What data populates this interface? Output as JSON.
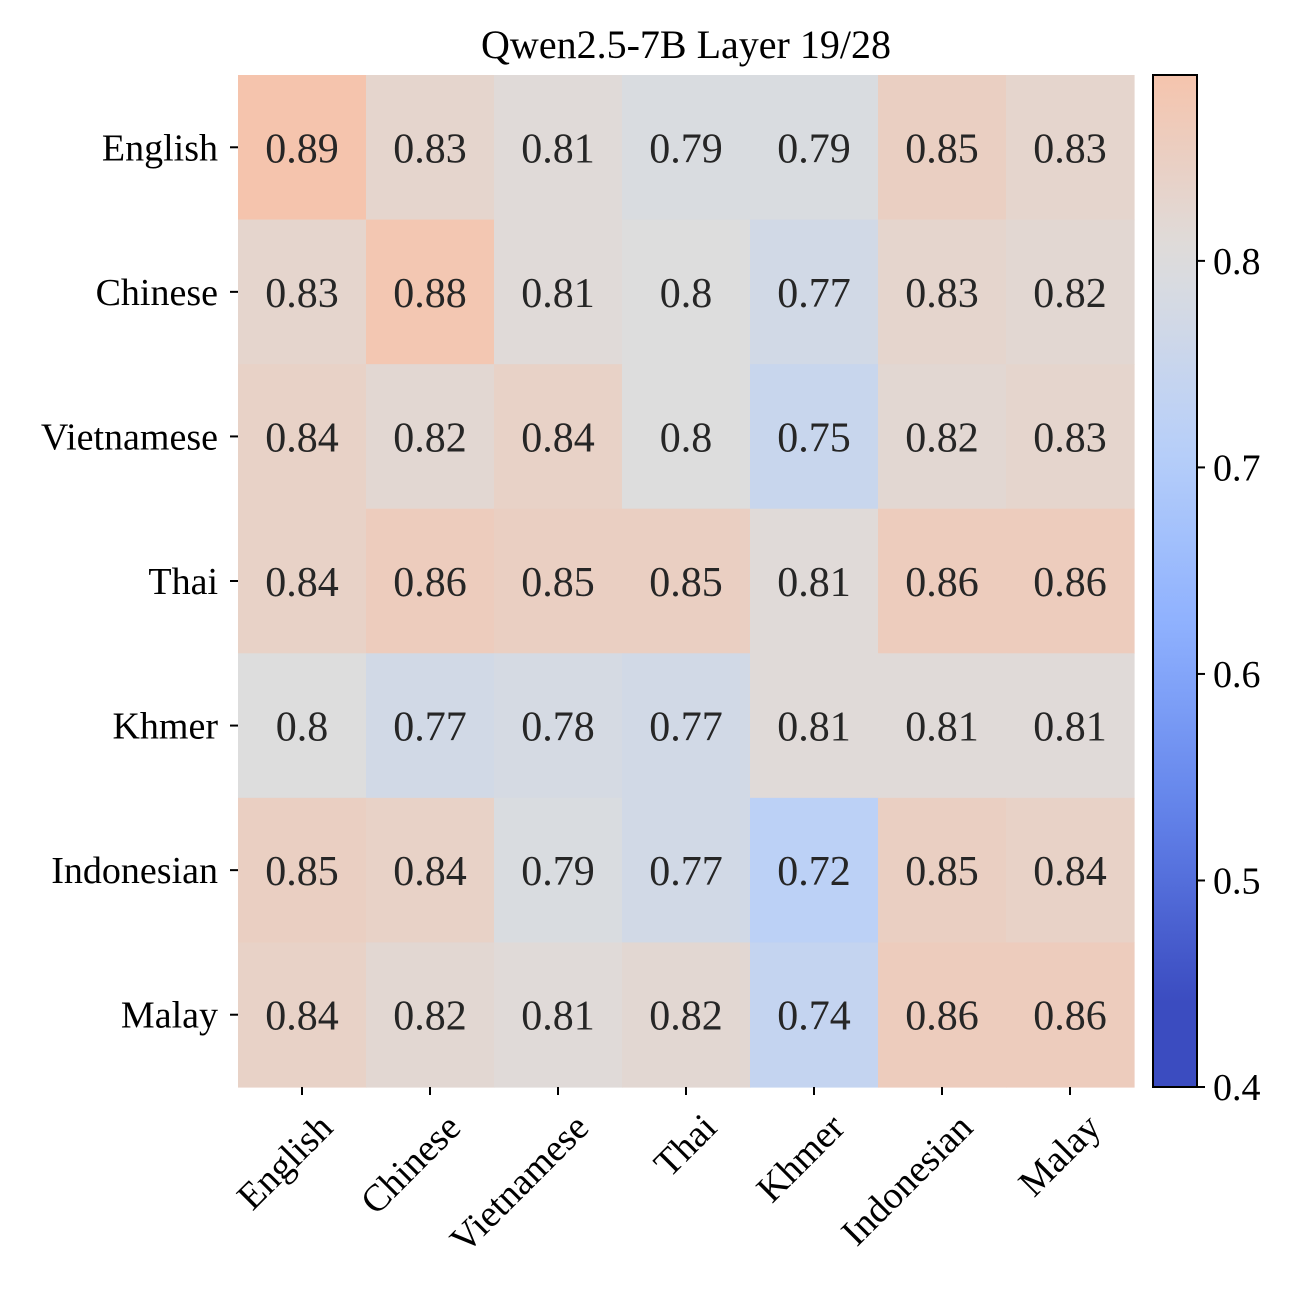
{
  "chart_data": {
    "type": "heatmap",
    "title": "Qwen2.5-7B Layer 19/28",
    "xlabel": "",
    "ylabel": "",
    "row_labels": [
      "English",
      "Chinese",
      "Vietnamese",
      "Thai",
      "Khmer",
      "Indonesian",
      "Malay"
    ],
    "col_labels": [
      "English",
      "Chinese",
      "Vietnamese",
      "Thai",
      "Khmer",
      "Indonesian",
      "Malay"
    ],
    "values": [
      [
        0.89,
        0.83,
        0.81,
        0.79,
        0.79,
        0.85,
        0.83
      ],
      [
        0.83,
        0.88,
        0.81,
        0.8,
        0.77,
        0.83,
        0.82
      ],
      [
        0.84,
        0.82,
        0.84,
        0.8,
        0.75,
        0.82,
        0.83
      ],
      [
        0.84,
        0.86,
        0.85,
        0.85,
        0.81,
        0.86,
        0.86
      ],
      [
        0.8,
        0.77,
        0.78,
        0.77,
        0.81,
        0.81,
        0.81
      ],
      [
        0.85,
        0.84,
        0.79,
        0.77,
        0.72,
        0.85,
        0.84
      ],
      [
        0.84,
        0.82,
        0.81,
        0.82,
        0.74,
        0.86,
        0.86
      ]
    ],
    "value_labels": [
      [
        "0.89",
        "0.83",
        "0.81",
        "0.79",
        "0.79",
        "0.85",
        "0.83"
      ],
      [
        "0.83",
        "0.88",
        "0.81",
        "0.8",
        "0.77",
        "0.83",
        "0.82"
      ],
      [
        "0.84",
        "0.82",
        "0.84",
        "0.8",
        "0.75",
        "0.82",
        "0.83"
      ],
      [
        "0.84",
        "0.86",
        "0.85",
        "0.85",
        "0.81",
        "0.86",
        "0.86"
      ],
      [
        "0.8",
        "0.77",
        "0.78",
        "0.77",
        "0.81",
        "0.81",
        "0.81"
      ],
      [
        "0.85",
        "0.84",
        "0.79",
        "0.77",
        "0.72",
        "0.85",
        "0.84"
      ],
      [
        "0.84",
        "0.82",
        "0.81",
        "0.82",
        "0.74",
        "0.86",
        "0.86"
      ]
    ],
    "colormap": "coolwarm",
    "color_range": [
      0.4,
      0.89
    ],
    "colorbar": {
      "ticks": [
        0.4,
        0.5,
        0.6,
        0.7,
        0.8
      ],
      "tick_labels": [
        "0.4",
        "0.5",
        "0.6",
        "0.7",
        "0.8"
      ],
      "placement": "right"
    }
  },
  "colors": {
    "low": "#3b4cc0",
    "mid": "#dddddd",
    "high": "#b40426",
    "text": "#262626",
    "axis": "#000000"
  }
}
